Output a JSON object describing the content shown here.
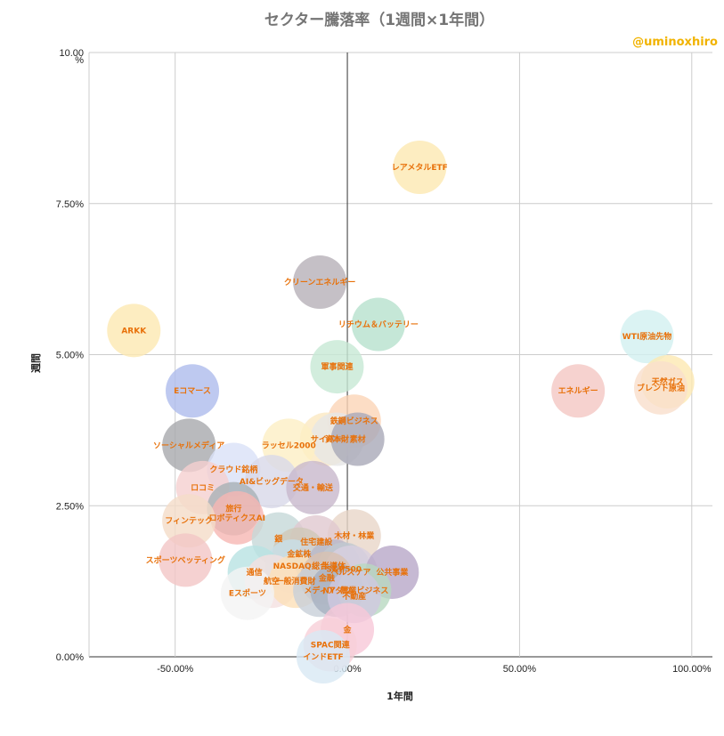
{
  "chart_data": {
    "type": "scatter",
    "title": "セクター騰落率（1週間×1年間）",
    "credit": "@uminoxhiro",
    "xlabel": "1年間",
    "ylabel": "週間",
    "xlim": [
      -75,
      106
    ],
    "ylim": [
      0,
      10
    ],
    "x_ticks": [
      {
        "v": -50,
        "label": "-50.00%"
      },
      {
        "v": 0,
        "label": "0.00%"
      },
      {
        "v": 50,
        "label": "50.00%"
      },
      {
        "v": 100,
        "label": "100.00%"
      }
    ],
    "y_ticks": [
      {
        "v": 0,
        "label": "0.00%"
      },
      {
        "v": 2.5,
        "label": "2.50%"
      },
      {
        "v": 5,
        "label": "5.00%"
      },
      {
        "v": 7.5,
        "label": "7.50%"
      },
      {
        "v": 10,
        "label": "10.00"
      }
    ],
    "y_top_unit": "%",
    "grid": true,
    "points": [
      {
        "label": "レアメタルETF",
        "x": 21,
        "y": 8.1,
        "color": "#fce8b2"
      },
      {
        "label": "クリーンエネルギー",
        "x": -8,
        "y": 6.2,
        "color": "#b7b0b8"
      },
      {
        "label": "リチウム＆バッテリー",
        "x": 9,
        "y": 5.5,
        "color": "#b7e1cd"
      },
      {
        "label": "ARKK",
        "x": -62,
        "y": 5.4,
        "color": "#fce8b2"
      },
      {
        "label": "WTI原油先物",
        "x": 87,
        "y": 5.3,
        "color": "#d2f0f0"
      },
      {
        "label": "軍事関連",
        "x": -3,
        "y": 4.8,
        "color": "#c7e8d5"
      },
      {
        "label": "天然ガス",
        "x": 93,
        "y": 4.55,
        "color": "#fce8b2"
      },
      {
        "label": "ブレント原油",
        "x": 91,
        "y": 4.45,
        "color": "#f9dfcc"
      },
      {
        "label": "エネルギー",
        "x": 67,
        "y": 4.4,
        "color": "#f4c7c3"
      },
      {
        "label": "Eコマース",
        "x": -45,
        "y": 4.4,
        "color": "#aebcec"
      },
      {
        "label": "鉄鋼ビジネス",
        "x": 2,
        "y": 3.9,
        "color": "#fbd5b6"
      },
      {
        "label": "サイバー",
        "x": -6,
        "y": 3.6,
        "color": "#fbe8c2"
      },
      {
        "label": "資本財",
        "x": -3,
        "y": 3.6,
        "color": "#e6e6e6"
      },
      {
        "label": "素材",
        "x": 3,
        "y": 3.6,
        "color": "#a9a9b8"
      },
      {
        "label": "ラッセル2000",
        "x": -17,
        "y": 3.5,
        "color": "#fdefc4"
      },
      {
        "label": "ソーシャルメディア",
        "x": -46,
        "y": 3.5,
        "color": "#a7a9ac"
      },
      {
        "label": "クラウド銘柄",
        "x": -33,
        "y": 3.1,
        "color": "#d9e1f7"
      },
      {
        "label": "AI&ビッグデータ",
        "x": -22,
        "y": 2.9,
        "color": "#d8d8e8"
      },
      {
        "label": "ロコミ",
        "x": -42,
        "y": 2.8,
        "color": "#f5d0d0"
      },
      {
        "label": "交通・輸送",
        "x": -10,
        "y": 2.8,
        "color": "#c8b8cc"
      },
      {
        "label": "旅行",
        "x": -33,
        "y": 2.45,
        "color": "#a7b0b5"
      },
      {
        "label": "ロボティクスAI",
        "x": -32,
        "y": 2.3,
        "color": "#f6b7b3"
      },
      {
        "label": "フィンテック",
        "x": -46,
        "y": 2.25,
        "color": "#f4dcc8"
      },
      {
        "label": "木材・林業",
        "x": 2,
        "y": 2.0,
        "color": "#e9d6c8"
      },
      {
        "label": "銀",
        "x": -20,
        "y": 1.95,
        "color": "#c5d8d8"
      },
      {
        "label": "住宅建設",
        "x": -9,
        "y": 1.9,
        "color": "#e0c8d0"
      },
      {
        "label": "金鉱株",
        "x": -14,
        "y": 1.7,
        "color": "#d0c8b8"
      },
      {
        "label": "スポーツベッティング",
        "x": -47,
        "y": 1.6,
        "color": "#f2c6c6"
      },
      {
        "label": "NASDAQ",
        "x": -16,
        "y": 1.5,
        "color": "#c8e0e8"
      },
      {
        "label": "総合",
        "x": -8,
        "y": 1.5,
        "color": "#d0d0d0"
      },
      {
        "label": "半導体",
        "x": -4,
        "y": 1.5,
        "color": "#b8b8c8"
      },
      {
        "label": "S&P500",
        "x": -1,
        "y": 1.45,
        "color": "#c0c8d0"
      },
      {
        "label": "ヘルスケア",
        "x": 1,
        "y": 1.4,
        "color": "#d8d0e0"
      },
      {
        "label": "公共事業",
        "x": 13,
        "y": 1.4,
        "color": "#b8a8c8"
      },
      {
        "label": "通信",
        "x": -27,
        "y": 1.4,
        "color": "#b8e2e2"
      },
      {
        "label": "航空",
        "x": -22,
        "y": 1.25,
        "color": "#f4e0e0"
      },
      {
        "label": "一般消費財",
        "x": -15,
        "y": 1.25,
        "color": "#fde0b8"
      },
      {
        "label": "金融",
        "x": -6,
        "y": 1.3,
        "color": "#d8c0b0"
      },
      {
        "label": "メディア",
        "x": -8,
        "y": 1.1,
        "color": "#c8d0d8"
      },
      {
        "label": "NYダウ",
        "x": -3,
        "y": 1.1,
        "color": "#a8b0c0"
      },
      {
        "label": "農業ビジネス",
        "x": 5,
        "y": 1.1,
        "color": "#b8d8c0"
      },
      {
        "label": "不動産",
        "x": 2,
        "y": 1.0,
        "color": "#d0c8e0"
      },
      {
        "label": "Eスポーツ",
        "x": -29,
        "y": 1.05,
        "color": "#f4f4f4"
      },
      {
        "label": "金",
        "x": 0,
        "y": 0.45,
        "color": "#f8c8d8"
      },
      {
        "label": "SPAC関連",
        "x": -5,
        "y": 0.2,
        "color": "#f8d0d8"
      },
      {
        "label": "インドETF",
        "x": -7,
        "y": 0.0,
        "color": "#d8e8f4"
      }
    ]
  }
}
